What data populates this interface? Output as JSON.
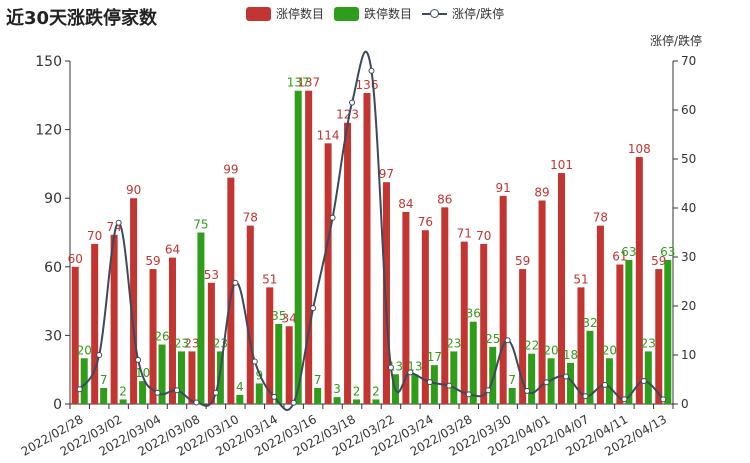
{
  "chart_data": {
    "type": "bar",
    "title": "近30天涨跌停家数",
    "categories": [
      "2022/02/28",
      "2022/03/01",
      "2022/03/02",
      "2022/03/03",
      "2022/03/04",
      "2022/03/07",
      "2022/03/08",
      "2022/03/09",
      "2022/03/10",
      "2022/03/11",
      "2022/03/14",
      "2022/03/15",
      "2022/03/16",
      "2022/03/17",
      "2022/03/18",
      "2022/03/21",
      "2022/03/22",
      "2022/03/23",
      "2022/03/24",
      "2022/03/25",
      "2022/03/28",
      "2022/03/29",
      "2022/03/30",
      "2022/03/31",
      "2022/04/01",
      "2022/04/06",
      "2022/04/07",
      "2022/04/08",
      "2022/04/11",
      "2022/04/12",
      "2022/04/13"
    ],
    "x_tick_labels": [
      "2022/02/28",
      "2022/03/02",
      "2022/03/04",
      "2022/03/08",
      "2022/03/10",
      "2022/03/14",
      "2022/03/16",
      "2022/03/18",
      "2022/03/22",
      "2022/03/24",
      "2022/03/28",
      "2022/03/30",
      "2022/04/01",
      "2022/04/07",
      "2022/04/11",
      "2022/04/13"
    ],
    "series": [
      {
        "name": "涨停数目",
        "color": "#c23531",
        "axis": "left",
        "values": [
          60,
          70,
          74,
          90,
          59,
          64,
          23,
          53,
          99,
          78,
          51,
          34,
          137,
          114,
          123,
          136,
          97,
          84,
          76,
          86,
          71,
          70,
          91,
          59,
          89,
          101,
          51,
          78,
          61,
          108,
          59
        ]
      },
      {
        "name": "跌停数目",
        "color": "#2e9e1a",
        "axis": "left",
        "values": [
          20,
          7,
          2,
          10,
          26,
          23,
          75,
          23,
          4,
          9,
          35,
          137,
          7,
          3,
          2,
          2,
          13,
          13,
          17,
          23,
          36,
          25,
          7,
          22,
          20,
          18,
          32,
          20,
          63,
          23,
          63
        ]
      },
      {
        "name": "涨停/跌停",
        "color": "#3d4a5c",
        "axis": "right",
        "type": "line",
        "values": [
          3,
          10,
          37,
          9,
          2.3,
          2.8,
          0.31,
          2.3,
          24.75,
          8.67,
          1.46,
          0.25,
          19.57,
          38,
          61.5,
          68,
          7.46,
          6.46,
          4.47,
          3.74,
          1.97,
          2.8,
          13,
          2.68,
          4.45,
          5.61,
          1.59,
          3.9,
          0.97,
          4.7,
          0.94
        ]
      }
    ],
    "ylim": [
      0,
      150
    ],
    "y_ticks": [
      0,
      30,
      60,
      90,
      120,
      150
    ],
    "y2lim": [
      0,
      70
    ],
    "y2_ticks": [
      0,
      10,
      20,
      30,
      40,
      50,
      60,
      70
    ],
    "y2label": "涨停/跌停",
    "legend_position": "top-center",
    "grid": false
  }
}
